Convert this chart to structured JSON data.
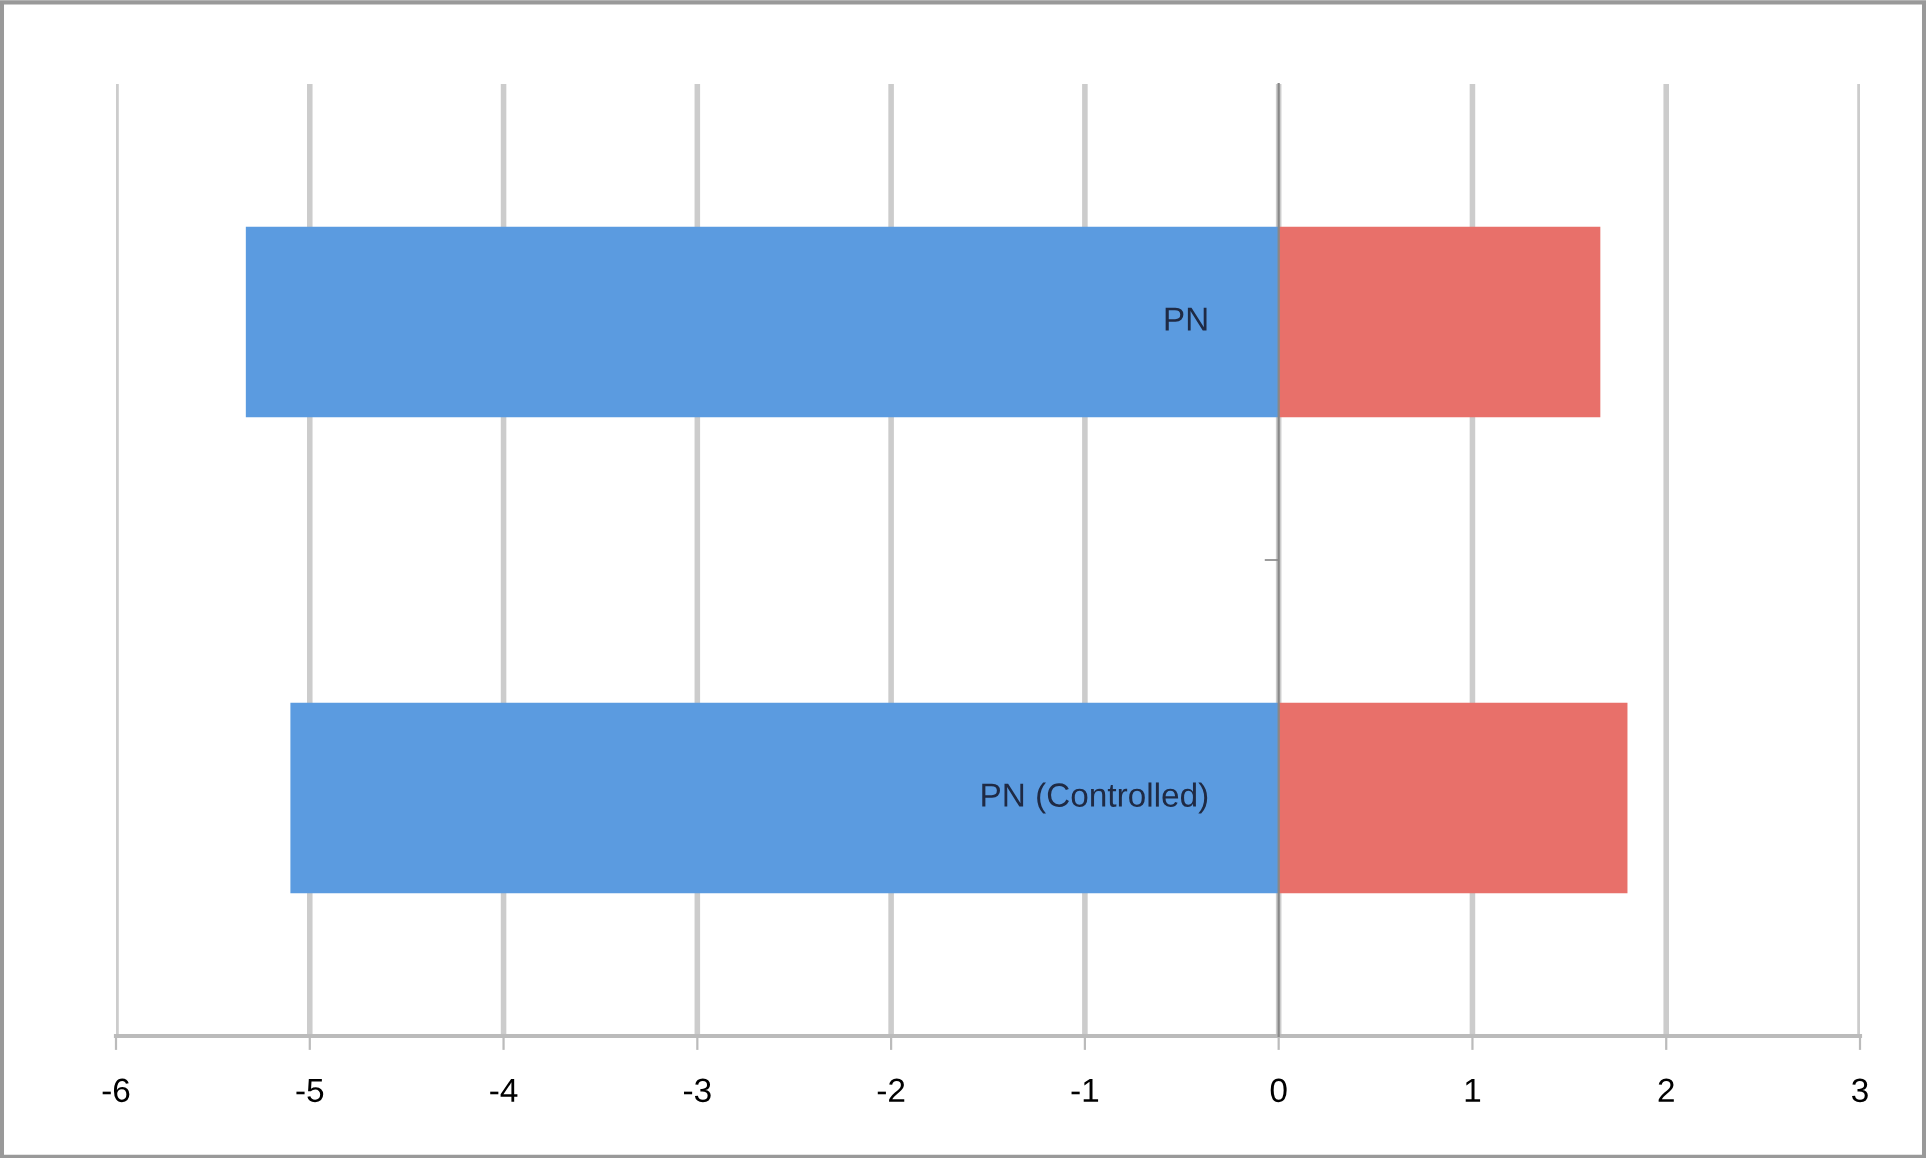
{
  "chart_data": {
    "type": "bar",
    "orientation": "horizontal",
    "stacked": true,
    "categories": [
      "PN",
      "PN (Controlled)"
    ],
    "series": [
      {
        "color": "#5b9be0",
        "values": [
          -5.33,
          -5.1
        ]
      },
      {
        "color": "#e8706a",
        "values": [
          1.66,
          1.8
        ]
      }
    ],
    "xlim": [
      -6,
      3
    ],
    "xticks": [
      -6,
      -5,
      -4,
      -3,
      -2,
      -1,
      0,
      1,
      2,
      3
    ],
    "grid": "x"
  }
}
